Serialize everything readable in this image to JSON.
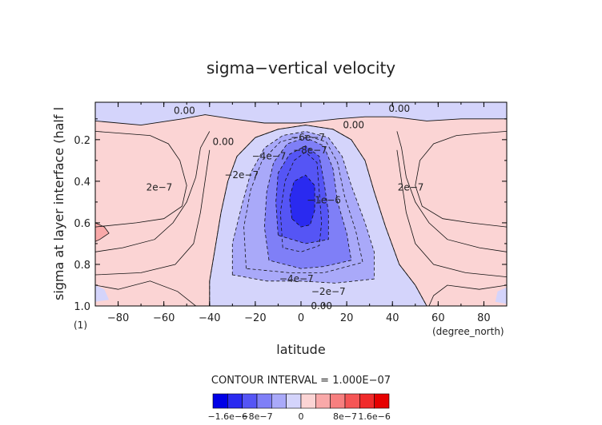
{
  "chart_data": {
    "type": "heatmap",
    "title": "sigma−vertical velocity",
    "xlabel": "latitude",
    "ylabel": "sigma at layer interface (half l",
    "x_unit": "(degree_north)",
    "y_unit": "(1)",
    "xlim": [
      -90,
      90
    ],
    "ylim": [
      1.0,
      0.02
    ],
    "x_ticks": [
      -80,
      -60,
      -40,
      -20,
      0,
      20,
      40,
      60,
      80
    ],
    "x_tick_labels": [
      "−80",
      "−60",
      "−40",
      "−20",
      "0",
      "20",
      "40",
      "60",
      "80"
    ],
    "y_ticks": [
      0.2,
      0.4,
      0.6,
      0.8,
      1.0
    ],
    "y_tick_labels": [
      "0.2",
      "0.4",
      "0.6",
      "0.8",
      "1.0"
    ],
    "contour_interval_text": "CONTOUR INTERVAL = 1.000E−07",
    "contour_labels": [
      {
        "text": "0.00",
        "lat": -51,
        "sigma": 0.06
      },
      {
        "text": "0.00",
        "lat": 23,
        "sigma": 0.13
      },
      {
        "text": "0.00",
        "lat": 43,
        "sigma": 0.05
      },
      {
        "text": "0.00",
        "lat": -34,
        "sigma": 0.21
      },
      {
        "text": "−6e−7",
        "lat": 3,
        "sigma": 0.19
      },
      {
        "text": "−8e−7",
        "lat": 4,
        "sigma": 0.25
      },
      {
        "text": "−4e−7",
        "lat": -14,
        "sigma": 0.28
      },
      {
        "text": "−2e−7",
        "lat": -26,
        "sigma": 0.37
      },
      {
        "text": "2e−7",
        "lat": -62,
        "sigma": 0.43
      },
      {
        "text": "2e−7",
        "lat": 48,
        "sigma": 0.43
      },
      {
        "text": "−1e−6",
        "lat": 10,
        "sigma": 0.49
      },
      {
        "text": "−4e−7",
        "lat": -2,
        "sigma": 0.87
      },
      {
        "text": "−2e−7",
        "lat": 12,
        "sigma": 0.93
      },
      {
        "text": "0.00",
        "lat": 9,
        "sigma": 1.0
      }
    ],
    "colorbar": {
      "colors": [
        "#0000e6",
        "#2a2af0",
        "#5555f5",
        "#7f7ff7",
        "#a9a9f9",
        "#d4d4fb",
        "#fbd4d4",
        "#f9a9a9",
        "#f77f7f",
        "#f55555",
        "#f02a2a",
        "#e60000"
      ],
      "labels": [
        "−1.6e−6",
        "−8e−7",
        "0",
        "8e−7",
        "1.6e−6"
      ],
      "label_positions": [
        1,
        3,
        6,
        9,
        11
      ]
    },
    "fill_levels": [
      {
        "level": "0",
        "color": "#fbd4d4"
      },
      {
        "level": "-1e-7",
        "color": "#d4d4fb"
      },
      {
        "level": "-3e-7",
        "color": "#a9a9f9"
      },
      {
        "level": "-5e-7",
        "color": "#7f7ff7"
      },
      {
        "level": "-7e-7",
        "color": "#5555f5"
      },
      {
        "level": "-9e-7",
        "color": "#2a2af0"
      }
    ]
  }
}
